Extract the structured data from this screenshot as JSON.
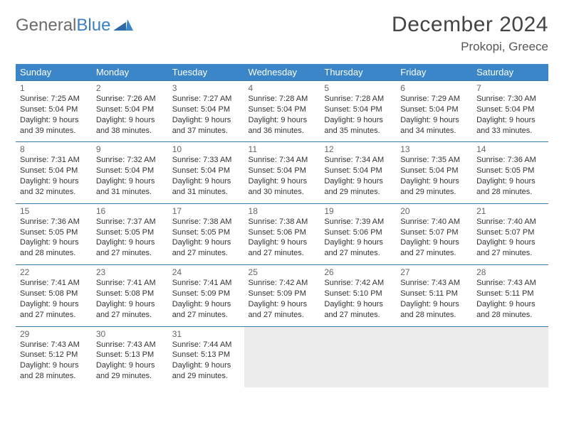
{
  "logo": {
    "part1": "General",
    "part2": "Blue"
  },
  "header": {
    "month_title": "December 2024",
    "location": "Prokopi, Greece"
  },
  "calendar": {
    "type": "table",
    "header_bg": "#3a86c8",
    "header_fg": "#ffffff",
    "cell_border": "#3a7aa8",
    "empty_bg": "#ececec",
    "day_headers": [
      "Sunday",
      "Monday",
      "Tuesday",
      "Wednesday",
      "Thursday",
      "Friday",
      "Saturday"
    ],
    "weeks": [
      [
        {
          "n": "1",
          "sunrise": "7:25 AM",
          "sunset": "5:04 PM",
          "dl": "9 hours and 39 minutes."
        },
        {
          "n": "2",
          "sunrise": "7:26 AM",
          "sunset": "5:04 PM",
          "dl": "9 hours and 38 minutes."
        },
        {
          "n": "3",
          "sunrise": "7:27 AM",
          "sunset": "5:04 PM",
          "dl": "9 hours and 37 minutes."
        },
        {
          "n": "4",
          "sunrise": "7:28 AM",
          "sunset": "5:04 PM",
          "dl": "9 hours and 36 minutes."
        },
        {
          "n": "5",
          "sunrise": "7:28 AM",
          "sunset": "5:04 PM",
          "dl": "9 hours and 35 minutes."
        },
        {
          "n": "6",
          "sunrise": "7:29 AM",
          "sunset": "5:04 PM",
          "dl": "9 hours and 34 minutes."
        },
        {
          "n": "7",
          "sunrise": "7:30 AM",
          "sunset": "5:04 PM",
          "dl": "9 hours and 33 minutes."
        }
      ],
      [
        {
          "n": "8",
          "sunrise": "7:31 AM",
          "sunset": "5:04 PM",
          "dl": "9 hours and 32 minutes."
        },
        {
          "n": "9",
          "sunrise": "7:32 AM",
          "sunset": "5:04 PM",
          "dl": "9 hours and 31 minutes."
        },
        {
          "n": "10",
          "sunrise": "7:33 AM",
          "sunset": "5:04 PM",
          "dl": "9 hours and 31 minutes."
        },
        {
          "n": "11",
          "sunrise": "7:34 AM",
          "sunset": "5:04 PM",
          "dl": "9 hours and 30 minutes."
        },
        {
          "n": "12",
          "sunrise": "7:34 AM",
          "sunset": "5:04 PM",
          "dl": "9 hours and 29 minutes."
        },
        {
          "n": "13",
          "sunrise": "7:35 AM",
          "sunset": "5:04 PM",
          "dl": "9 hours and 29 minutes."
        },
        {
          "n": "14",
          "sunrise": "7:36 AM",
          "sunset": "5:05 PM",
          "dl": "9 hours and 28 minutes."
        }
      ],
      [
        {
          "n": "15",
          "sunrise": "7:36 AM",
          "sunset": "5:05 PM",
          "dl": "9 hours and 28 minutes."
        },
        {
          "n": "16",
          "sunrise": "7:37 AM",
          "sunset": "5:05 PM",
          "dl": "9 hours and 27 minutes."
        },
        {
          "n": "17",
          "sunrise": "7:38 AM",
          "sunset": "5:05 PM",
          "dl": "9 hours and 27 minutes."
        },
        {
          "n": "18",
          "sunrise": "7:38 AM",
          "sunset": "5:06 PM",
          "dl": "9 hours and 27 minutes."
        },
        {
          "n": "19",
          "sunrise": "7:39 AM",
          "sunset": "5:06 PM",
          "dl": "9 hours and 27 minutes."
        },
        {
          "n": "20",
          "sunrise": "7:40 AM",
          "sunset": "5:07 PM",
          "dl": "9 hours and 27 minutes."
        },
        {
          "n": "21",
          "sunrise": "7:40 AM",
          "sunset": "5:07 PM",
          "dl": "9 hours and 27 minutes."
        }
      ],
      [
        {
          "n": "22",
          "sunrise": "7:41 AM",
          "sunset": "5:08 PM",
          "dl": "9 hours and 27 minutes."
        },
        {
          "n": "23",
          "sunrise": "7:41 AM",
          "sunset": "5:08 PM",
          "dl": "9 hours and 27 minutes."
        },
        {
          "n": "24",
          "sunrise": "7:41 AM",
          "sunset": "5:09 PM",
          "dl": "9 hours and 27 minutes."
        },
        {
          "n": "25",
          "sunrise": "7:42 AM",
          "sunset": "5:09 PM",
          "dl": "9 hours and 27 minutes."
        },
        {
          "n": "26",
          "sunrise": "7:42 AM",
          "sunset": "5:10 PM",
          "dl": "9 hours and 27 minutes."
        },
        {
          "n": "27",
          "sunrise": "7:43 AM",
          "sunset": "5:11 PM",
          "dl": "9 hours and 28 minutes."
        },
        {
          "n": "28",
          "sunrise": "7:43 AM",
          "sunset": "5:11 PM",
          "dl": "9 hours and 28 minutes."
        }
      ],
      [
        {
          "n": "29",
          "sunrise": "7:43 AM",
          "sunset": "5:12 PM",
          "dl": "9 hours and 28 minutes."
        },
        {
          "n": "30",
          "sunrise": "7:43 AM",
          "sunset": "5:13 PM",
          "dl": "9 hours and 29 minutes."
        },
        {
          "n": "31",
          "sunrise": "7:44 AM",
          "sunset": "5:13 PM",
          "dl": "9 hours and 29 minutes."
        },
        null,
        null,
        null,
        null
      ]
    ],
    "labels": {
      "sunrise": "Sunrise: ",
      "sunset": "Sunset: ",
      "daylight": "Daylight: "
    }
  }
}
